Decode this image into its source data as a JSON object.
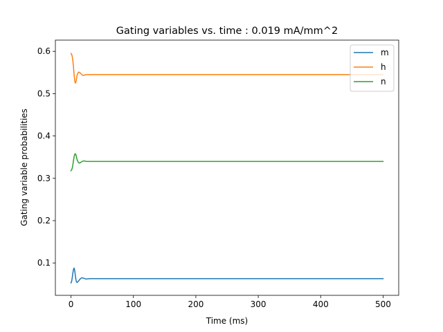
{
  "chart_data": {
    "type": "line",
    "title": "Gating variables vs. time : 0.019 mA/mm^2",
    "xlabel": "Time (ms)",
    "ylabel": "Gating variable probabilities",
    "xlim": [
      -25,
      525
    ],
    "ylim": [
      0.0235,
      0.6265
    ],
    "xticks": [
      0,
      100,
      200,
      300,
      400,
      500
    ],
    "yticks": [
      0.1,
      0.2,
      0.3,
      0.4,
      0.5,
      0.6
    ],
    "xtick_labels": [
      "0",
      "100",
      "200",
      "300",
      "400",
      "500"
    ],
    "ytick_labels": [
      "0.1",
      "0.2",
      "0.3",
      "0.4",
      "0.5",
      "0.6"
    ],
    "grid": false,
    "legend_position": "top-right",
    "series": [
      {
        "name": "m",
        "color": "#1f77b4",
        "x": [
          0,
          1,
          2,
          3,
          4,
          5,
          6,
          7,
          8,
          9,
          10,
          12,
          14,
          16,
          18,
          20,
          22,
          24,
          27,
          30,
          35,
          40,
          60,
          100,
          200,
          300,
          400,
          500
        ],
        "y": [
          0.053,
          0.056,
          0.065,
          0.076,
          0.085,
          0.088,
          0.082,
          0.07,
          0.06,
          0.055,
          0.054,
          0.057,
          0.061,
          0.064,
          0.065,
          0.064,
          0.063,
          0.062,
          0.0625,
          0.063,
          0.063,
          0.063,
          0.063,
          0.063,
          0.063,
          0.063,
          0.063,
          0.063
        ]
      },
      {
        "name": "h",
        "color": "#ff7f0e",
        "x": [
          0,
          1,
          2,
          3,
          4,
          5,
          6,
          7,
          8,
          9,
          10,
          12,
          14,
          16,
          18,
          20,
          22,
          24,
          27,
          30,
          35,
          40,
          60,
          100,
          200,
          300,
          400,
          500
        ],
        "y": [
          0.595,
          0.593,
          0.588,
          0.578,
          0.563,
          0.545,
          0.53,
          0.525,
          0.528,
          0.537,
          0.545,
          0.551,
          0.55,
          0.547,
          0.544,
          0.543,
          0.544,
          0.545,
          0.545,
          0.545,
          0.545,
          0.545,
          0.545,
          0.545,
          0.545,
          0.545,
          0.545,
          0.545
        ]
      },
      {
        "name": "n",
        "color": "#2ca02c",
        "x": [
          0,
          1,
          2,
          3,
          4,
          5,
          6,
          7,
          8,
          9,
          10,
          12,
          14,
          16,
          18,
          20,
          22,
          24,
          27,
          30,
          35,
          40,
          60,
          100,
          200,
          300,
          400,
          500
        ],
        "y": [
          0.318,
          0.32,
          0.324,
          0.332,
          0.342,
          0.351,
          0.357,
          0.358,
          0.355,
          0.349,
          0.343,
          0.337,
          0.336,
          0.338,
          0.34,
          0.341,
          0.341,
          0.34,
          0.34,
          0.34,
          0.34,
          0.34,
          0.34,
          0.34,
          0.34,
          0.34,
          0.34,
          0.34
        ]
      }
    ]
  }
}
